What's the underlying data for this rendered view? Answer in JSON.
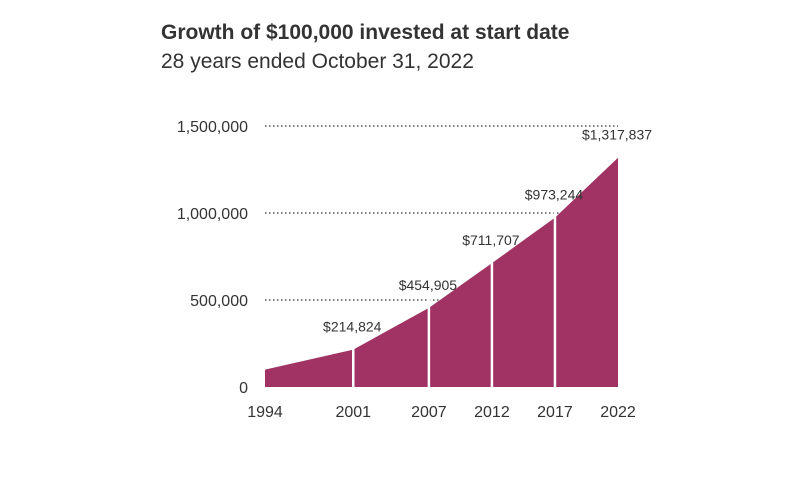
{
  "chart_data": {
    "type": "area",
    "title": "Growth of $100,000 invested at start date",
    "subtitle": "28 years ended October 31, 2022",
    "x": [
      1994,
      2001,
      2007,
      2012,
      2017,
      2022
    ],
    "values": [
      100000,
      214824,
      454905,
      711707,
      973244,
      1317837
    ],
    "data_labels": [
      "",
      "$214,824",
      "$454,905",
      "$711,707",
      "$973,244",
      "$1,317,837"
    ],
    "xtick_labels": [
      "1994",
      "2001",
      "2007",
      "2012",
      "2017",
      "2022"
    ],
    "ytick_values": [
      0,
      500000,
      1000000,
      1500000
    ],
    "ytick_labels": [
      "0",
      "500,000",
      "1,000,000",
      "1,500,000"
    ],
    "ylim": [
      0,
      1500000
    ],
    "xlim": [
      1994,
      2022
    ],
    "grid": "dotted horizontal at 500,000 / 1,000,000 / 1,500,000",
    "colors": {
      "area": "#a03363",
      "grid": "#333333",
      "divider": "#ffffff"
    }
  }
}
